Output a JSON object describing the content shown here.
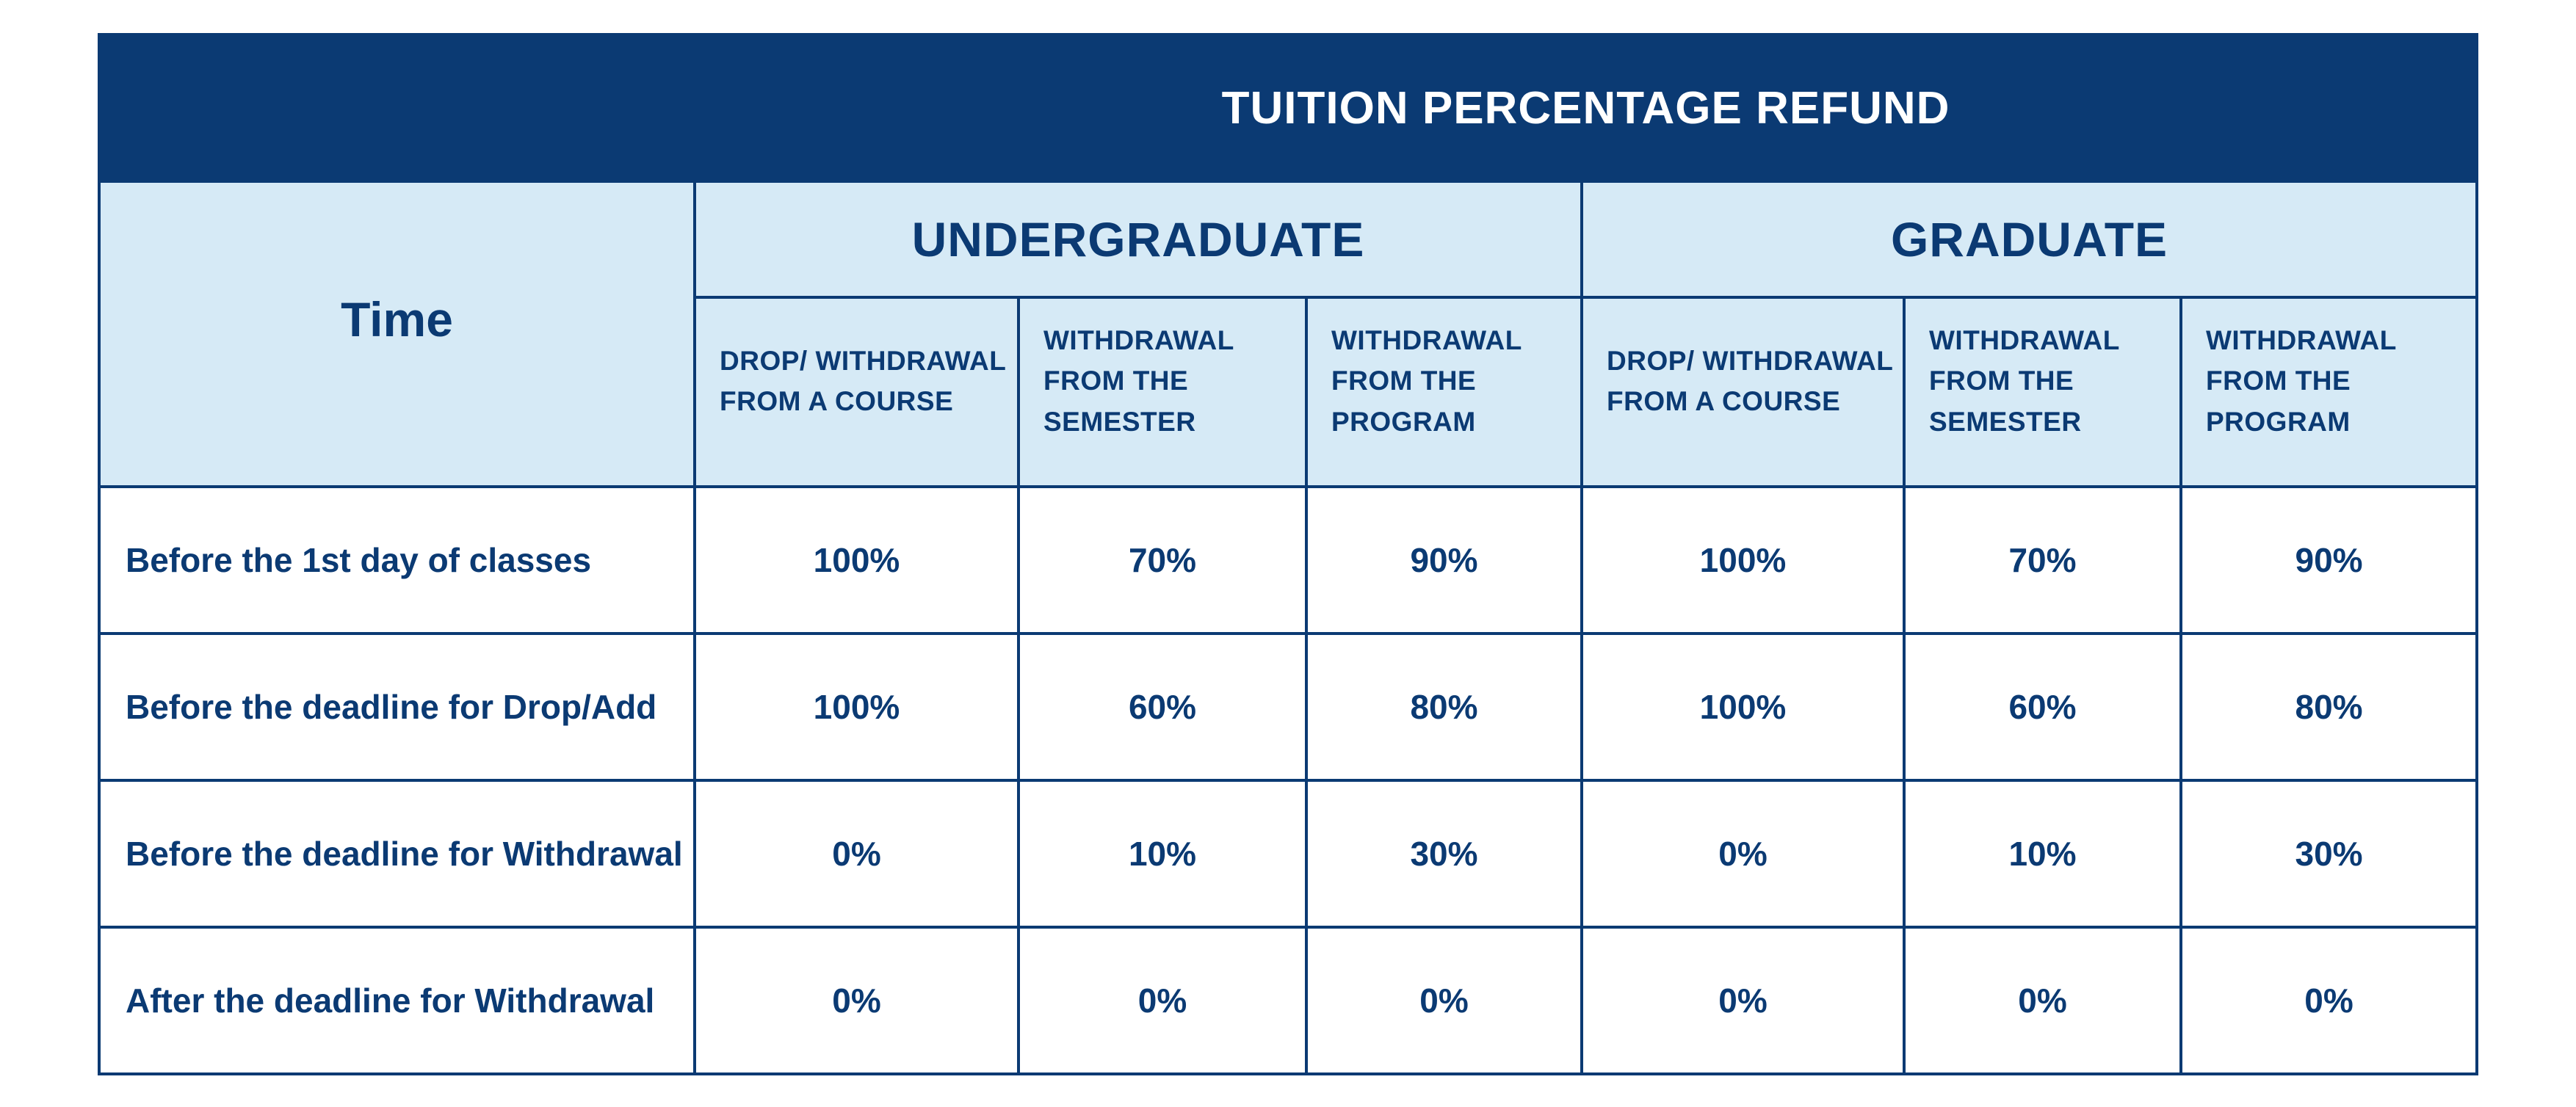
{
  "title": "TUITION PERCENTAGE REFUND",
  "time_header": "Time",
  "groups": {
    "undergraduate": "UNDERGRADUATE",
    "graduate": "GRADUATE"
  },
  "sub_headers": [
    "DROP/ WITHDRAWAL FROM A COURSE",
    "WITHDRAWAL FROM THE SEMESTER",
    "WITHDRAWAL FROM THE PROGRAM",
    "DROP/ WITHDRAWAL FROM A COURSE",
    "WITHDRAWAL FROM THE SEMESTER",
    "WITHDRAWAL FROM THE PROGRAM"
  ],
  "rows": [
    {
      "label": "Before the 1st day of classes",
      "values": [
        "100%",
        "70%",
        "90%",
        "100%",
        "70%",
        "90%"
      ]
    },
    {
      "label": "Before the deadline for Drop/Add",
      "values": [
        "100%",
        "60%",
        "80%",
        "100%",
        "60%",
        "80%"
      ]
    },
    {
      "label": "Before the deadline for Withdrawal",
      "values": [
        "0%",
        "10%",
        "30%",
        "0%",
        "10%",
        "30%"
      ]
    },
    {
      "label": "After the deadline for Withdrawal",
      "values": [
        "0%",
        "0%",
        "0%",
        "0%",
        "0%",
        "0%"
      ]
    }
  ],
  "colors": {
    "header_bg": "#0b3a73",
    "subheader_bg": "#d6eaf6",
    "text": "#0b3a73"
  }
}
